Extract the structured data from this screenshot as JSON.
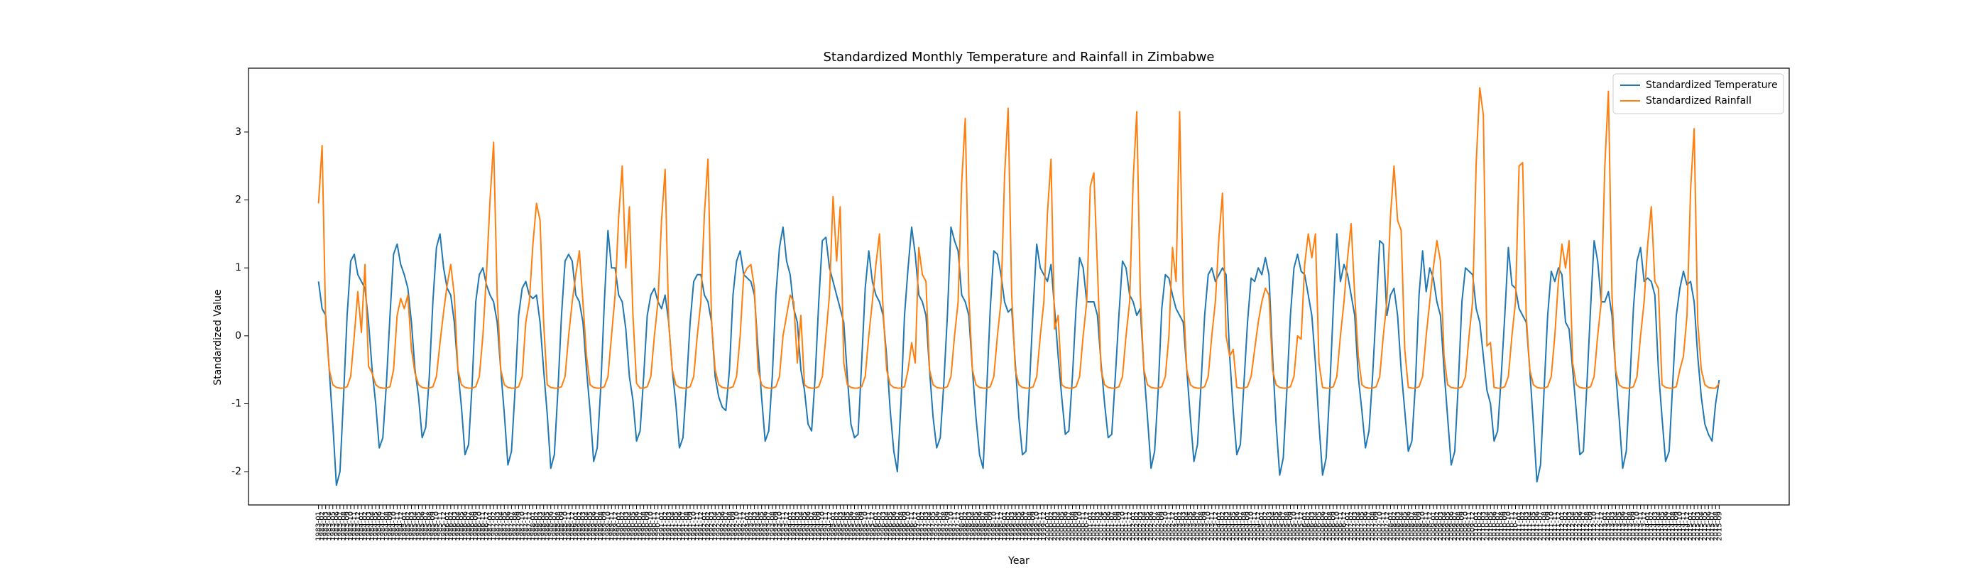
{
  "chart_data": {
    "type": "line",
    "title": "Standardized Monthly Temperature and Rainfall in Zimbabwe",
    "xlabel": "Year",
    "ylabel": "Standardized Value",
    "ylim": [
      -2.49,
      3.94
    ],
    "yticks": [
      -2,
      -1,
      0,
      1,
      2,
      3
    ],
    "legend": "upper right",
    "categories": [
      "1983-01",
      "1983-02",
      "1983-03",
      "1983-04",
      "1983-05",
      "1983-06",
      "1983-07",
      "1983-08",
      "1983-09",
      "1983-10",
      "1983-11",
      "1983-12",
      "1984-01",
      "1984-02",
      "1984-03",
      "1984-04",
      "1984-05",
      "1984-06",
      "1984-07",
      "1984-08",
      "1984-09",
      "1984-10",
      "1984-11",
      "1984-12",
      "1985-01",
      "1985-02",
      "1985-03",
      "1985-04",
      "1985-05",
      "1985-06",
      "1985-07",
      "1985-08",
      "1985-09",
      "1985-10",
      "1985-11",
      "1985-12",
      "1986-01",
      "1986-02",
      "1986-03",
      "1986-04",
      "1986-05",
      "1986-06",
      "1986-07",
      "1986-08",
      "1986-09",
      "1986-10",
      "1986-11",
      "1986-12",
      "1987-01",
      "1987-02",
      "1987-03",
      "1987-04",
      "1987-05",
      "1987-06",
      "1987-07",
      "1987-08",
      "1987-09",
      "1987-10",
      "1987-11",
      "1987-12",
      "1988-01",
      "1988-02",
      "1988-03",
      "1988-04",
      "1988-05",
      "1988-06",
      "1988-07",
      "1988-08",
      "1988-09",
      "1988-10",
      "1988-11",
      "1988-12",
      "1989-01",
      "1989-02",
      "1989-03",
      "1989-04",
      "1989-05",
      "1989-06",
      "1989-07",
      "1989-08",
      "1989-09",
      "1989-10",
      "1989-11",
      "1989-12",
      "1990-01",
      "1990-02",
      "1990-03",
      "1990-04",
      "1990-05",
      "1990-06",
      "1990-07",
      "1990-08",
      "1990-09",
      "1990-10",
      "1990-11",
      "1990-12",
      "1991-01",
      "1991-02",
      "1991-03",
      "1991-04",
      "1991-05",
      "1991-06",
      "1991-07",
      "1991-08",
      "1991-09",
      "1991-10",
      "1991-11",
      "1991-12",
      "1992-01",
      "1992-02",
      "1992-03",
      "1992-04",
      "1992-05",
      "1992-06",
      "1992-07",
      "1992-08",
      "1992-09",
      "1992-10",
      "1992-11",
      "1992-12",
      "1993-01",
      "1993-02",
      "1993-03",
      "1993-04",
      "1993-05",
      "1993-06",
      "1993-07",
      "1993-08",
      "1993-09",
      "1993-10",
      "1993-11",
      "1993-12",
      "1994-01",
      "1994-02",
      "1994-03",
      "1994-04",
      "1994-05",
      "1994-06",
      "1994-07",
      "1994-08",
      "1994-09",
      "1994-10",
      "1994-11",
      "1994-12",
      "1995-01",
      "1995-02",
      "1995-03",
      "1995-04",
      "1995-05",
      "1995-06",
      "1995-07",
      "1995-08",
      "1995-09",
      "1995-10",
      "1995-11",
      "1995-12",
      "1996-01",
      "1996-02",
      "1996-03",
      "1996-04",
      "1996-05",
      "1996-06",
      "1996-07",
      "1996-08",
      "1996-09",
      "1996-10",
      "1996-11",
      "1996-12",
      "1997-01",
      "1997-02",
      "1997-03",
      "1997-04",
      "1997-05",
      "1997-06",
      "1997-07",
      "1997-08",
      "1997-09",
      "1997-10",
      "1997-11",
      "1997-12",
      "1998-01",
      "1998-02",
      "1998-03",
      "1998-04",
      "1998-05",
      "1998-06",
      "1998-07",
      "1998-08",
      "1998-09",
      "1998-10",
      "1998-11",
      "1998-12",
      "1999-01",
      "1999-02",
      "1999-03",
      "1999-04",
      "1999-05",
      "1999-06",
      "1999-07",
      "1999-08",
      "1999-09",
      "1999-10",
      "1999-11",
      "1999-12",
      "2000-01",
      "2000-02",
      "2000-03",
      "2000-04",
      "2000-05",
      "2000-06",
      "2000-07",
      "2000-08",
      "2000-09",
      "2000-10",
      "2000-11",
      "2000-12",
      "2001-01",
      "2001-02",
      "2001-03",
      "2001-04",
      "2001-05",
      "2001-06",
      "2001-07",
      "2001-08",
      "2001-09",
      "2001-10",
      "2001-11",
      "2001-12",
      "2002-01",
      "2002-02",
      "2002-03",
      "2002-04",
      "2002-05",
      "2002-06",
      "2002-07",
      "2002-08",
      "2002-09",
      "2002-10",
      "2002-11",
      "2002-12",
      "2003-01",
      "2003-02",
      "2003-03",
      "2003-04",
      "2003-05",
      "2003-06",
      "2003-07",
      "2003-08",
      "2003-09",
      "2003-10",
      "2003-11",
      "2003-12",
      "2004-01",
      "2004-02",
      "2004-03",
      "2004-04",
      "2004-05",
      "2004-06",
      "2004-07",
      "2004-08",
      "2004-09",
      "2004-10",
      "2004-11",
      "2004-12",
      "2005-01",
      "2005-02",
      "2005-03",
      "2005-04",
      "2005-05",
      "2005-06",
      "2005-07",
      "2005-08",
      "2005-09",
      "2005-10",
      "2005-11",
      "2005-12",
      "2006-01",
      "2006-02",
      "2006-03",
      "2006-04",
      "2006-05",
      "2006-06",
      "2006-07",
      "2006-08",
      "2006-09",
      "2006-10",
      "2006-11",
      "2006-12",
      "2007-01",
      "2007-02",
      "2007-03",
      "2007-04",
      "2007-05",
      "2007-06",
      "2007-07",
      "2007-08",
      "2007-09",
      "2007-10",
      "2007-11",
      "2007-12",
      "2008-01",
      "2008-02",
      "2008-03",
      "2008-04",
      "2008-05",
      "2008-06",
      "2008-07",
      "2008-08",
      "2008-09",
      "2008-10",
      "2008-11",
      "2008-12",
      "2009-01",
      "2009-02",
      "2009-03",
      "2009-04",
      "2009-05",
      "2009-06",
      "2009-07",
      "2009-08",
      "2009-09",
      "2009-10",
      "2009-11",
      "2009-12",
      "2010-01",
      "2010-02",
      "2010-03",
      "2010-04",
      "2010-05",
      "2010-06",
      "2010-07",
      "2010-08",
      "2010-09",
      "2010-10",
      "2010-11",
      "2010-12",
      "2011-01",
      "2011-02",
      "2011-03",
      "2011-04",
      "2011-05",
      "2011-06",
      "2011-07",
      "2011-08",
      "2011-09",
      "2011-10",
      "2011-11",
      "2011-12",
      "2012-01",
      "2012-02",
      "2012-03",
      "2012-04",
      "2012-05",
      "2012-06",
      "2012-07",
      "2012-08",
      "2012-09",
      "2012-10",
      "2012-11",
      "2012-12",
      "2013-01",
      "2013-02",
      "2013-03",
      "2013-04",
      "2013-05",
      "2013-06",
      "2013-07",
      "2013-08",
      "2013-09",
      "2013-10",
      "2013-11",
      "2013-12",
      "2014-01",
      "2014-02",
      "2014-03",
      "2014-04",
      "2014-05",
      "2014-06",
      "2014-07",
      "2014-08",
      "2014-09",
      "2014-10",
      "2014-11",
      "2014-12",
      "2015-01",
      "2015-02",
      "2015-03",
      "2015-04",
      "2015-05",
      "2015-06",
      "2015-07",
      "2015-08",
      "2015-09"
    ],
    "series": [
      {
        "name": "Standardized Temperature",
        "color": "#1f77b4",
        "values": [
          0.8,
          0.4,
          0.3,
          -0.5,
          -1.3,
          -2.2,
          -2.0,
          -0.9,
          0.3,
          1.1,
          1.2,
          0.9,
          0.8,
          0.7,
          0.2,
          -0.5,
          -1.0,
          -1.65,
          -1.5,
          -0.7,
          0.3,
          1.2,
          1.35,
          1.05,
          0.9,
          0.7,
          0.2,
          -0.5,
          -0.9,
          -1.5,
          -1.35,
          -0.6,
          0.5,
          1.3,
          1.5,
          1.0,
          0.7,
          0.6,
          0.2,
          -0.5,
          -1.05,
          -1.75,
          -1.6,
          -0.7,
          0.5,
          0.9,
          1.0,
          0.75,
          0.6,
          0.5,
          0.2,
          -0.5,
          -1.15,
          -1.9,
          -1.7,
          -0.8,
          0.3,
          0.7,
          0.8,
          0.6,
          0.55,
          0.6,
          0.2,
          -0.5,
          -1.15,
          -1.95,
          -1.75,
          -0.8,
          0.3,
          1.1,
          1.2,
          1.1,
          0.6,
          0.5,
          0.2,
          -0.5,
          -1.1,
          -1.85,
          -1.65,
          -0.75,
          0.5,
          1.55,
          1.0,
          1.0,
          0.6,
          0.5,
          0.1,
          -0.6,
          -0.95,
          -1.55,
          -1.4,
          -0.6,
          0.3,
          0.6,
          0.7,
          0.5,
          0.4,
          0.6,
          0.2,
          -0.5,
          -1.0,
          -1.65,
          -1.5,
          -0.7,
          0.2,
          0.8,
          0.9,
          0.9,
          0.6,
          0.5,
          0.2,
          -0.6,
          -0.9,
          -1.05,
          -1.1,
          -0.5,
          0.6,
          1.1,
          1.25,
          0.9,
          0.85,
          0.8,
          0.6,
          -0.2,
          -0.9,
          -1.55,
          -1.4,
          -0.6,
          0.6,
          1.3,
          1.6,
          1.1,
          0.9,
          0.4,
          0.2,
          -0.5,
          -0.8,
          -1.3,
          -1.4,
          -0.6,
          0.5,
          1.4,
          1.45,
          1.0,
          0.8,
          0.6,
          0.4,
          0.2,
          -0.6,
          -1.3,
          -1.5,
          -1.45,
          -0.4,
          0.7,
          1.25,
          0.8,
          0.6,
          0.5,
          0.3,
          -0.3,
          -1.1,
          -1.7,
          -2.0,
          -1.0,
          0.3,
          1.0,
          1.6,
          1.2,
          0.6,
          0.5,
          0.3,
          -0.5,
          -1.2,
          -1.65,
          -1.5,
          -0.7,
          0.3,
          1.6,
          1.4,
          1.25,
          0.6,
          0.5,
          0.3,
          -0.5,
          -1.2,
          -1.75,
          -1.95,
          -0.8,
          0.4,
          1.25,
          1.2,
          0.9,
          0.5,
          0.35,
          0.4,
          -0.4,
          -1.2,
          -1.75,
          -1.7,
          -0.7,
          0.4,
          1.35,
          1.0,
          0.9,
          0.8,
          1.05,
          0.4,
          -0.3,
          -0.9,
          -1.45,
          -1.4,
          -0.6,
          0.4,
          1.15,
          1.0,
          0.5,
          0.5,
          0.5,
          0.3,
          -0.4,
          -1.0,
          -1.5,
          -1.45,
          -0.6,
          0.3,
          1.1,
          1.0,
          0.6,
          0.5,
          0.3,
          0.4,
          -0.5,
          -1.2,
          -1.95,
          -1.7,
          -0.8,
          0.4,
          0.9,
          0.85,
          0.6,
          0.4,
          0.3,
          0.2,
          -0.5,
          -1.2,
          -1.85,
          -1.6,
          -0.7,
          0.3,
          0.9,
          1.0,
          0.8,
          0.9,
          1.0,
          0.9,
          -0.3,
          -1.1,
          -1.75,
          -1.6,
          -0.7,
          0.2,
          0.85,
          0.8,
          1.0,
          0.9,
          1.15,
          0.9,
          -0.3,
          -1.3,
          -2.05,
          -1.8,
          -0.8,
          0.3,
          1.0,
          1.2,
          0.95,
          0.9,
          0.6,
          0.3,
          -0.4,
          -1.3,
          -2.05,
          -1.8,
          -0.8,
          0.4,
          1.5,
          0.8,
          1.05,
          0.9,
          0.6,
          0.3,
          -0.6,
          -1.1,
          -1.65,
          -1.4,
          -0.6,
          0.4,
          1.4,
          1.35,
          0.3,
          0.6,
          0.7,
          0.3,
          -0.5,
          -1.1,
          -1.7,
          -1.55,
          -0.7,
          0.6,
          1.25,
          0.65,
          1.0,
          0.85,
          0.5,
          0.3,
          -0.5,
          -1.2,
          -1.9,
          -1.7,
          -0.7,
          0.5,
          1.0,
          0.95,
          0.9,
          0.4,
          0.2,
          -0.3,
          -0.8,
          -1.0,
          -1.55,
          -1.4,
          -0.6,
          0.3,
          1.3,
          0.75,
          0.7,
          0.4,
          0.3,
          0.2,
          -0.5,
          -1.3,
          -2.15,
          -1.9,
          -0.8,
          0.3,
          0.95,
          0.8,
          1.0,
          0.9,
          0.2,
          0.1,
          -0.5,
          -1.1,
          -1.75,
          -1.7,
          -0.7,
          0.4,
          1.4,
          1.1,
          0.5,
          0.5,
          0.65,
          0.3,
          -0.5,
          -1.2,
          -1.95,
          -1.7,
          -0.7,
          0.4,
          1.1,
          1.3,
          0.8,
          0.85,
          0.8,
          0.6,
          -0.5,
          -1.2,
          -1.85,
          -1.7,
          -0.7,
          0.3,
          0.7,
          0.95,
          0.75,
          0.8,
          0.5,
          -0.3,
          -0.9,
          -1.3,
          -1.45,
          -1.55,
          -1.0,
          -0.65
        ]
      },
      {
        "name": "Standardized Rainfall",
        "color": "#ff7f0e",
        "values": [
          1.95,
          2.8,
          0.2,
          -0.5,
          -0.72,
          -0.76,
          -0.77,
          -0.77,
          -0.75,
          -0.6,
          0.0,
          0.65,
          0.05,
          1.05,
          -0.45,
          -0.55,
          -0.72,
          -0.76,
          -0.77,
          -0.77,
          -0.75,
          -0.5,
          0.3,
          0.55,
          0.4,
          0.6,
          -0.2,
          -0.55,
          -0.72,
          -0.76,
          -0.77,
          -0.77,
          -0.75,
          -0.6,
          -0.1,
          0.35,
          0.75,
          1.05,
          0.6,
          -0.5,
          -0.72,
          -0.76,
          -0.77,
          -0.77,
          -0.75,
          -0.6,
          0.0,
          0.9,
          2.0,
          2.85,
          0.6,
          -0.5,
          -0.72,
          -0.76,
          -0.77,
          -0.77,
          -0.75,
          -0.6,
          0.2,
          0.5,
          1.35,
          1.95,
          1.7,
          0.2,
          -0.72,
          -0.76,
          -0.77,
          -0.77,
          -0.75,
          -0.6,
          0.0,
          0.5,
          0.9,
          1.25,
          0.5,
          -0.3,
          -0.72,
          -0.76,
          -0.77,
          -0.77,
          -0.75,
          -0.6,
          0.0,
          0.6,
          1.75,
          2.5,
          1.0,
          1.9,
          0.3,
          -0.7,
          -0.77,
          -0.77,
          -0.75,
          -0.6,
          0.0,
          0.5,
          1.7,
          2.45,
          0.2,
          -0.5,
          -0.72,
          -0.76,
          -0.77,
          -0.77,
          -0.75,
          -0.6,
          0.0,
          0.5,
          1.8,
          2.6,
          0.2,
          -0.5,
          -0.72,
          -0.76,
          -0.77,
          -0.77,
          -0.75,
          -0.6,
          0.0,
          0.9,
          1.0,
          1.05,
          0.7,
          -0.5,
          -0.72,
          -0.76,
          -0.77,
          -0.77,
          -0.75,
          -0.6,
          0.0,
          0.3,
          0.6,
          0.5,
          -0.4,
          0.3,
          -0.72,
          -0.76,
          -0.77,
          -0.77,
          -0.75,
          -0.6,
          0.0,
          0.6,
          2.05,
          1.1,
          1.9,
          -0.4,
          -0.72,
          -0.76,
          -0.77,
          -0.77,
          -0.75,
          -0.6,
          0.0,
          0.5,
          1.05,
          1.5,
          0.4,
          -0.5,
          -0.72,
          -0.76,
          -0.77,
          -0.77,
          -0.75,
          -0.5,
          -0.1,
          -0.4,
          1.3,
          0.9,
          0.8,
          -0.5,
          -0.72,
          -0.76,
          -0.77,
          -0.77,
          -0.75,
          -0.6,
          0.0,
          0.5,
          2.25,
          3.2,
          0.6,
          -0.5,
          -0.72,
          -0.76,
          -0.77,
          -0.77,
          -0.75,
          -0.6,
          0.0,
          0.5,
          2.35,
          3.35,
          0.6,
          -0.5,
          -0.72,
          -0.76,
          -0.77,
          -0.77,
          -0.75,
          -0.6,
          0.0,
          0.5,
          1.8,
          2.6,
          0.1,
          0.3,
          -0.72,
          -0.76,
          -0.77,
          -0.77,
          -0.75,
          -0.6,
          0.0,
          0.5,
          2.2,
          2.4,
          1.0,
          -0.5,
          -0.72,
          -0.76,
          -0.77,
          -0.77,
          -0.75,
          -0.6,
          0.0,
          0.5,
          2.3,
          3.3,
          0.6,
          -0.5,
          -0.72,
          -0.76,
          -0.77,
          -0.77,
          -0.75,
          -0.6,
          0.0,
          1.3,
          0.8,
          3.3,
          0.6,
          -0.5,
          -0.72,
          -0.76,
          -0.77,
          -0.77,
          -0.75,
          -0.6,
          0.0,
          0.5,
          1.45,
          2.1,
          0.0,
          -0.3,
          -0.2,
          -0.76,
          -0.77,
          -0.77,
          -0.75,
          -0.6,
          -0.2,
          0.2,
          0.5,
          0.7,
          0.6,
          -0.5,
          -0.72,
          -0.76,
          -0.77,
          -0.77,
          -0.75,
          -0.6,
          0.0,
          -0.05,
          1.05,
          1.5,
          1.15,
          1.5,
          -0.4,
          -0.76,
          -0.77,
          -0.77,
          -0.75,
          -0.6,
          0.0,
          0.5,
          1.15,
          1.65,
          0.6,
          -0.3,
          -0.72,
          -0.76,
          -0.77,
          -0.77,
          -0.75,
          -0.6,
          0.0,
          0.5,
          1.75,
          2.5,
          1.7,
          1.55,
          -0.2,
          -0.76,
          -0.77,
          -0.77,
          -0.75,
          -0.6,
          0.0,
          0.5,
          1.0,
          1.4,
          1.1,
          -0.3,
          -0.72,
          -0.76,
          -0.77,
          -0.77,
          -0.75,
          -0.6,
          0.0,
          0.5,
          2.55,
          3.65,
          3.25,
          -0.15,
          -0.1,
          -0.76,
          -0.77,
          -0.77,
          -0.75,
          -0.6,
          0.0,
          0.5,
          2.5,
          2.55,
          0.3,
          -0.5,
          -0.72,
          -0.76,
          -0.77,
          -0.77,
          -0.75,
          -0.6,
          0.0,
          0.8,
          1.35,
          1.0,
          1.4,
          -0.4,
          -0.72,
          -0.76,
          -0.77,
          -0.77,
          -0.75,
          -0.6,
          0.0,
          0.5,
          2.5,
          3.6,
          0.6,
          -0.5,
          -0.72,
          -0.76,
          -0.77,
          -0.77,
          -0.75,
          -0.6,
          0.0,
          0.5,
          1.35,
          1.9,
          0.8,
          0.7,
          -0.72,
          -0.76,
          -0.77,
          -0.77,
          -0.75,
          -0.5,
          -0.3,
          0.3,
          2.15,
          3.05,
          0.2,
          -0.5,
          -0.72,
          -0.76,
          -0.77,
          -0.77,
          -0.7
        ]
      }
    ]
  }
}
